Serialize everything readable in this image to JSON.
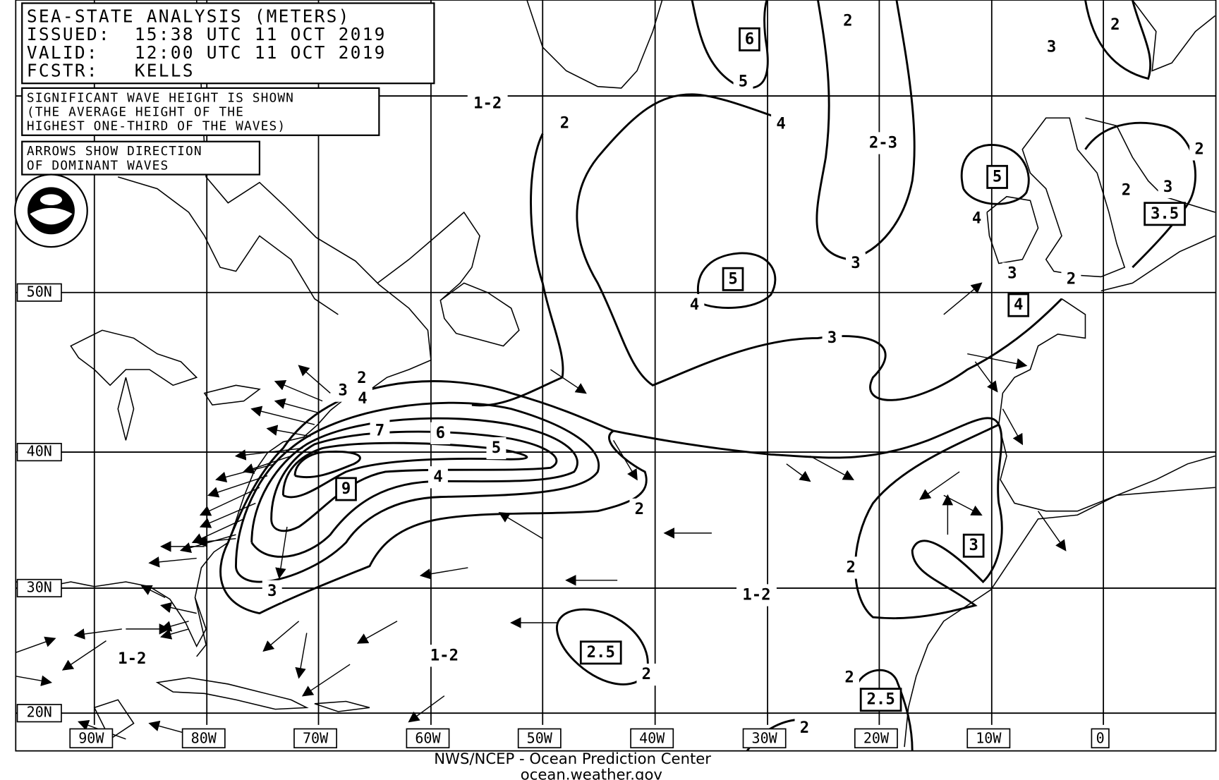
{
  "header": {
    "lines": [
      "SEA-STATE ANALYSIS (METERS)",
      "ISSUED:  15:38 UTC 11 OCT 2019",
      "VALID:   12:00 UTC 11 OCT 2019",
      "FCSTR:   KELLS"
    ]
  },
  "notes": [
    [
      "SIGNIFICANT WAVE HEIGHT IS SHOWN",
      "(THE AVERAGE HEIGHT OF THE",
      "HIGHEST ONE-THIRD OF THE WAVES)"
    ],
    [
      "ARROWS SHOW DIRECTION",
      "OF DOMINANT WAVES"
    ]
  ],
  "latitude_labels": [
    "50N",
    "40N",
    "30N",
    "20N"
  ],
  "longitude_labels": [
    "90W",
    "80W",
    "70W",
    "60W",
    "50W",
    "40W",
    "30W",
    "20W",
    "10W",
    "0"
  ],
  "contour_labels": [
    "1-2",
    "2",
    "2",
    "6",
    "5",
    "4",
    "2-3",
    "3",
    "2",
    "2",
    "3",
    "2",
    "3.5",
    "5",
    "4",
    "3",
    "2",
    "4",
    "3",
    "5",
    "4",
    "3",
    "2",
    "3",
    "4",
    "7",
    "6",
    "5",
    "4",
    "9",
    "2",
    "3",
    "2",
    "1-2",
    "3",
    "2.5",
    "2",
    "1-2",
    "1-2",
    "2",
    "2.5",
    "2"
  ],
  "footer": [
    "NWS/NCEP - Ocean Prediction Center",
    "ocean.weather.gov"
  ]
}
